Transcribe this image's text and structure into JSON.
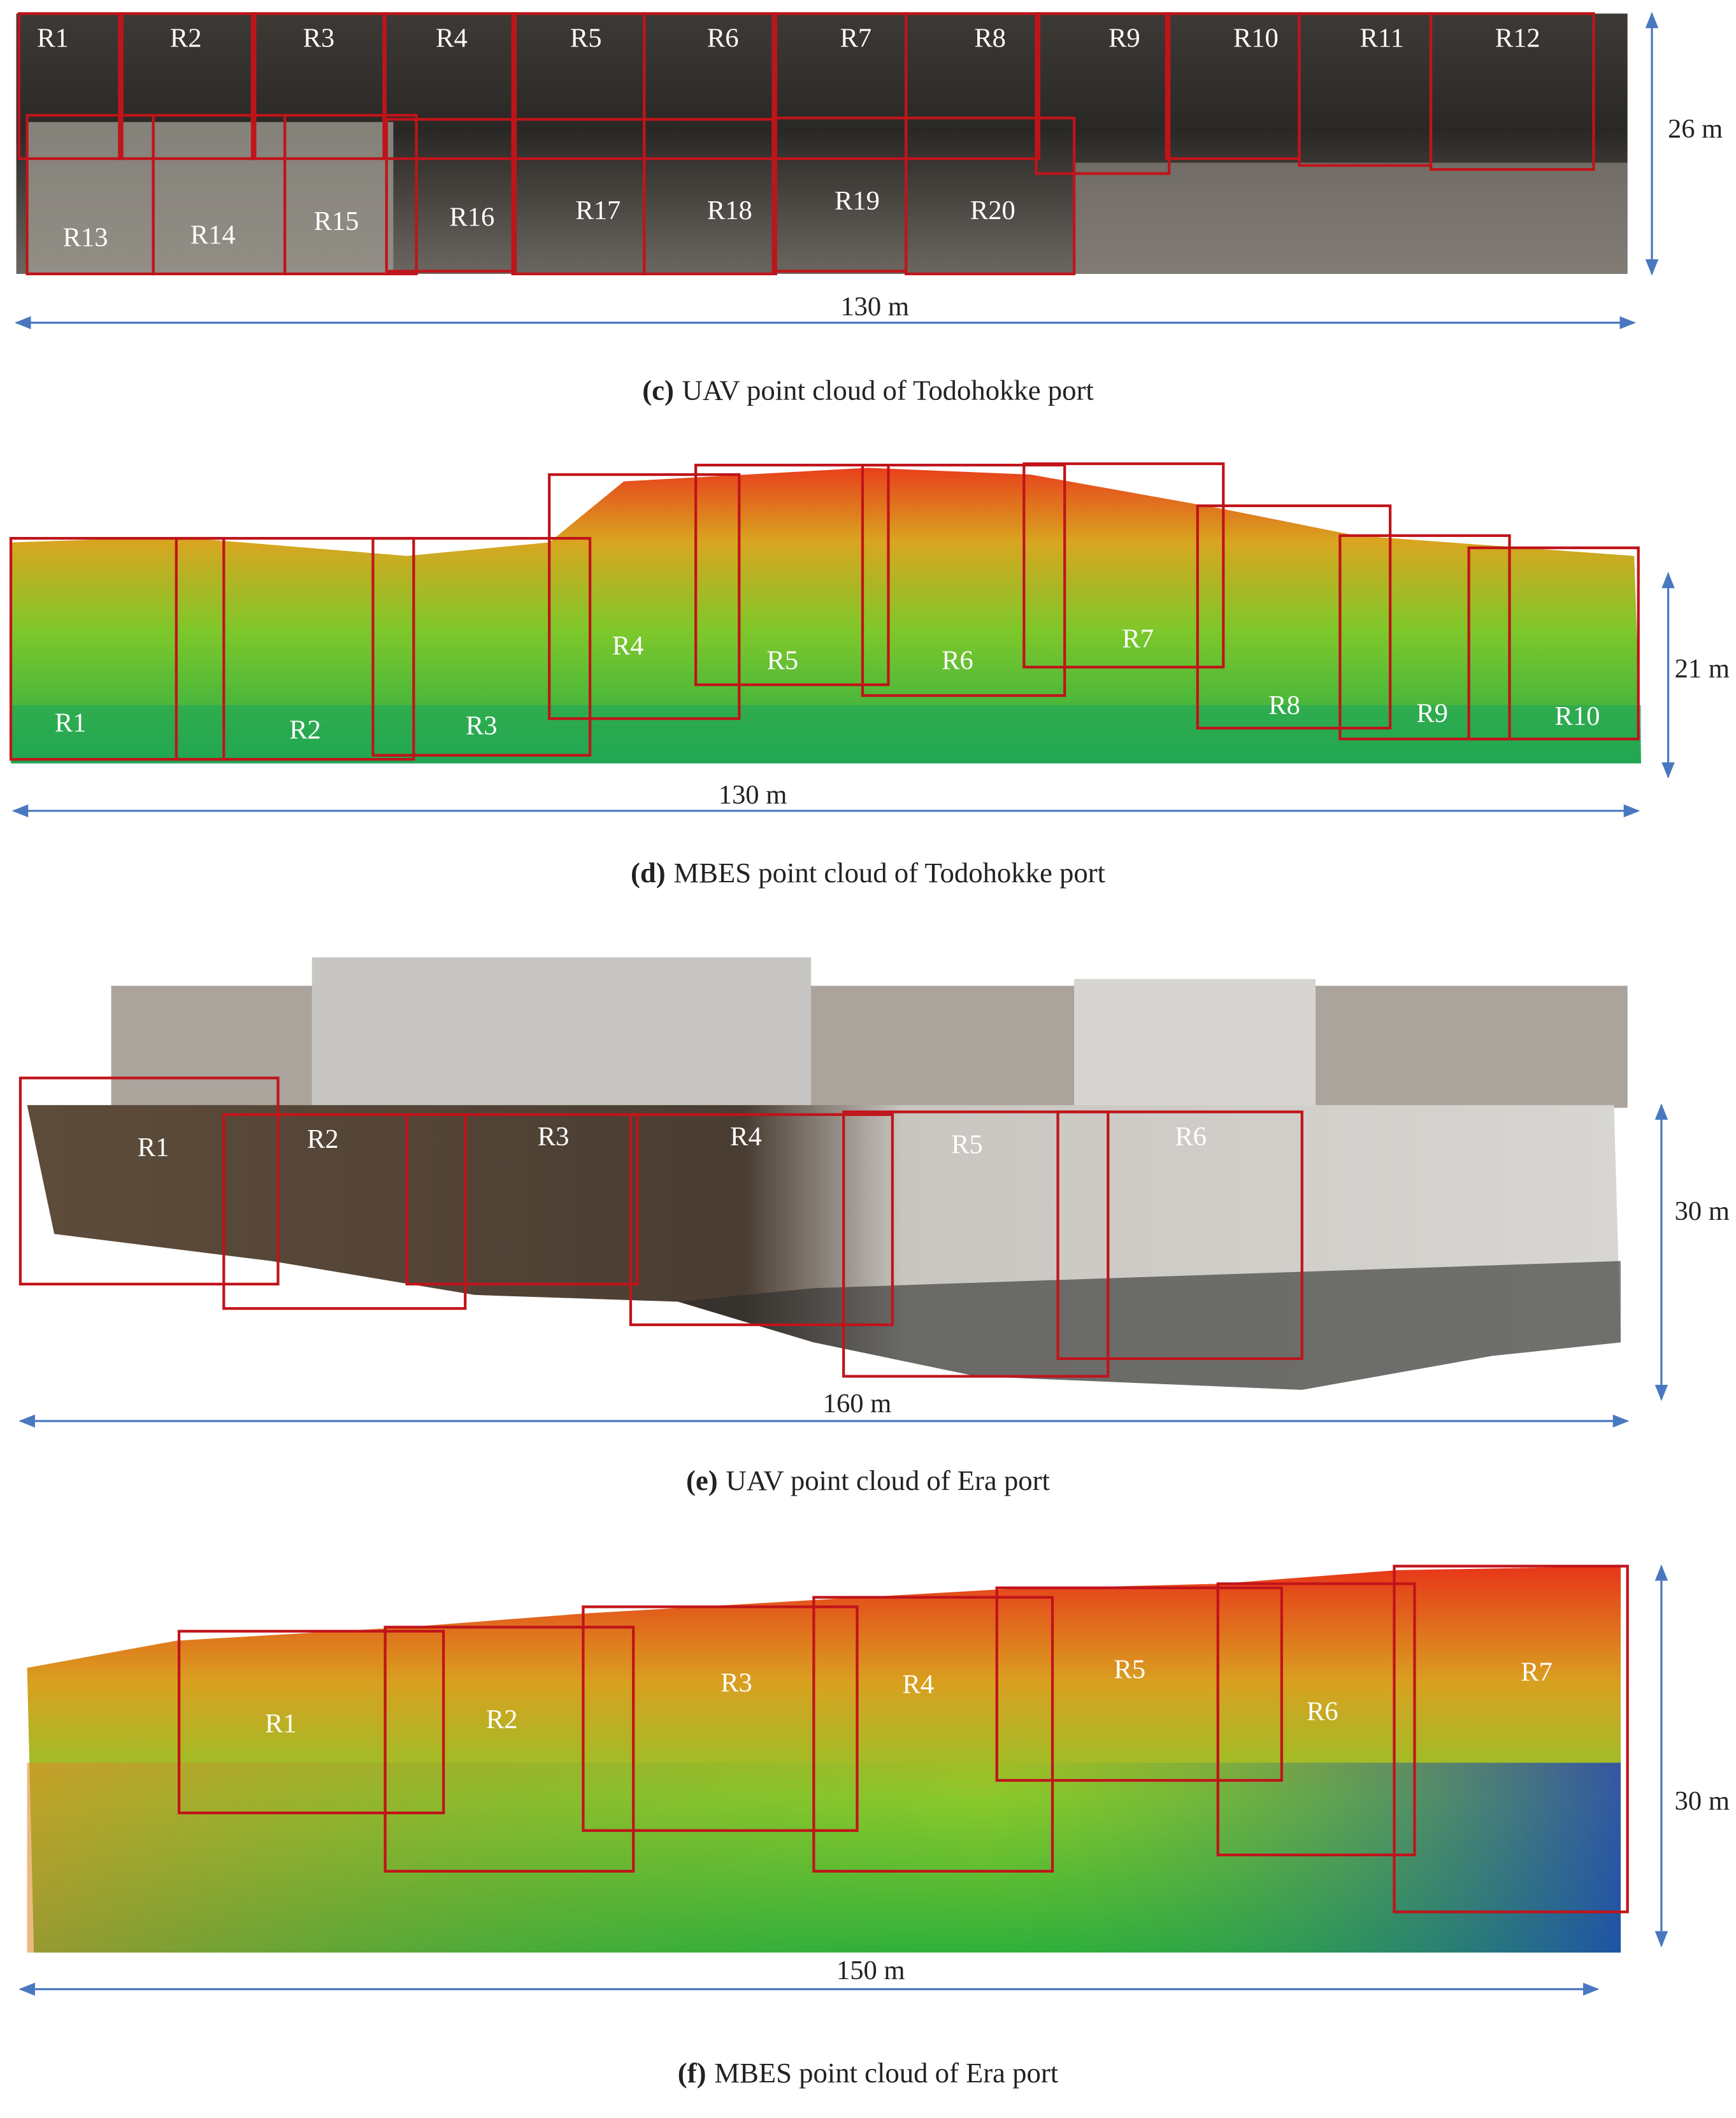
{
  "panels": [
    {
      "label": "(c)",
      "caption": "UAV point cloud of Todohokke port",
      "width_label": "130 m",
      "height_label": "26 m",
      "regions": [
        "R1",
        "R2",
        "R3",
        "R4",
        "R5",
        "R6",
        "R7",
        "R8",
        "R9",
        "R10",
        "R11",
        "R12",
        "R13",
        "R14",
        "R15",
        "R16",
        "R17",
        "R18",
        "R19",
        "R20"
      ]
    },
    {
      "label": "(d)",
      "caption": "MBES point cloud of Todohokke port",
      "width_label": "130 m",
      "height_label": "21 m",
      "regions": [
        "R1",
        "R2",
        "R3",
        "R4",
        "R5",
        "R6",
        "R7",
        "R8",
        "R9",
        "R10"
      ]
    },
    {
      "label": "(e)",
      "caption": "UAV point cloud of Era port",
      "width_label": "160 m",
      "height_label": "30 m",
      "regions": [
        "R1",
        "R2",
        "R3",
        "R4",
        "R5",
        "R6"
      ]
    },
    {
      "label": "(f)",
      "caption": "MBES point cloud of Era port",
      "width_label": "150 m",
      "height_label": "30 m",
      "regions": [
        "R1",
        "R2",
        "R3",
        "R4",
        "R5",
        "R6",
        "R7"
      ]
    }
  ]
}
